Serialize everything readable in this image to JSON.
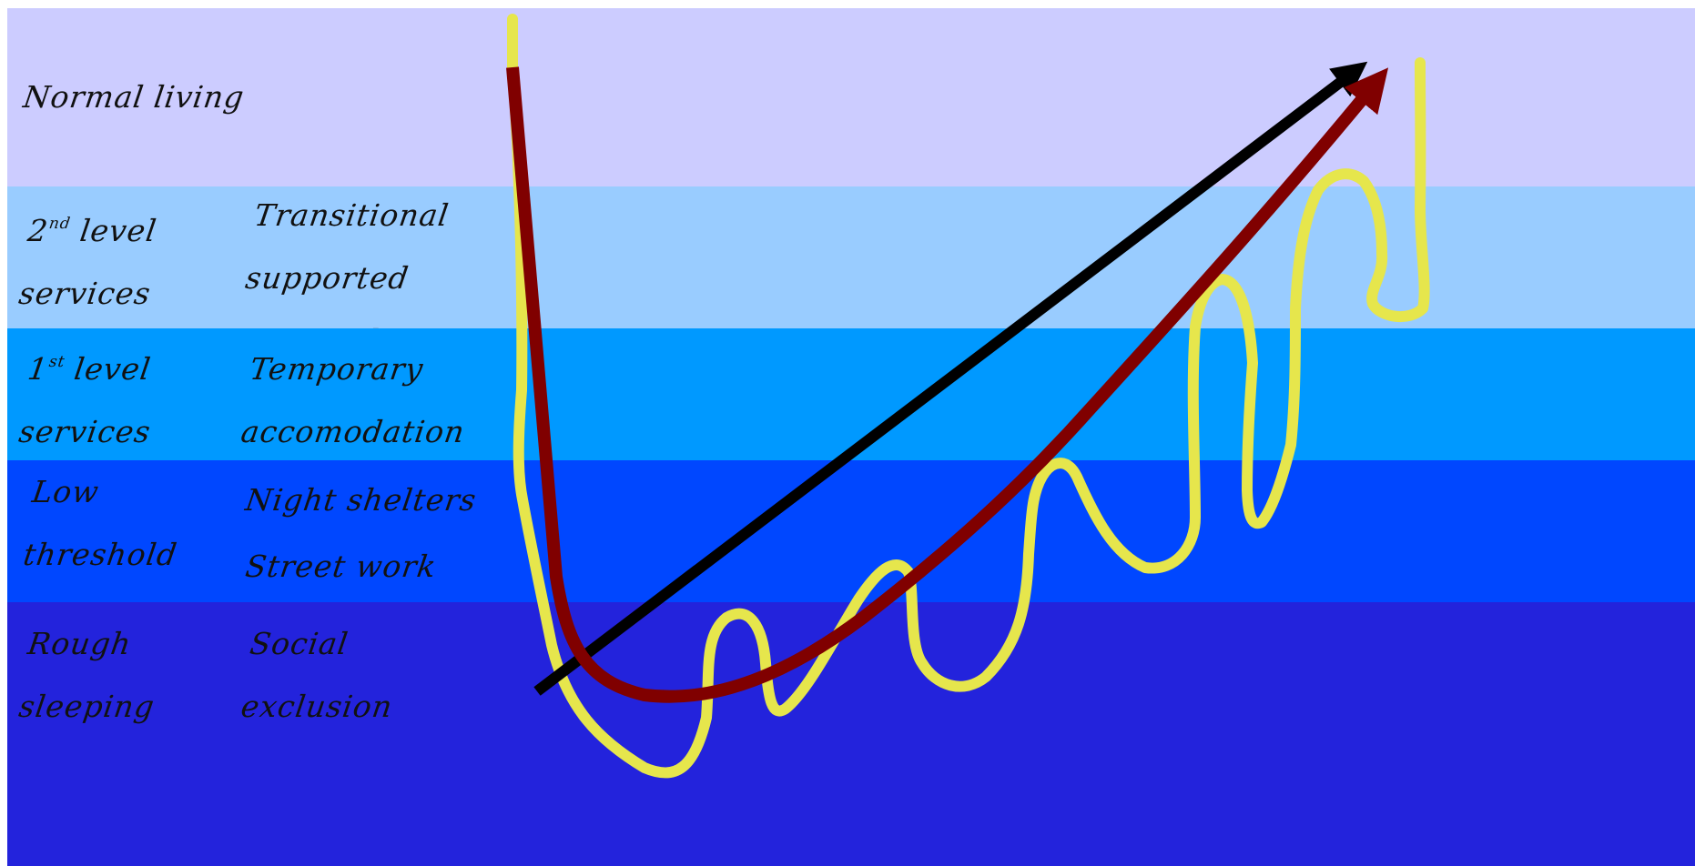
{
  "colors": {
    "normal_living": "#ccccff",
    "second_level": "#99ccff",
    "first_level": "#0099ff",
    "low_threshold": "#0047ff",
    "rough_sleeping": "#2323dc",
    "yellow_line": "#e6e64c",
    "dark_red_line": "#800000",
    "black_arrow": "#000000"
  },
  "bands": [
    {
      "id": "normal-living",
      "level_label": "Normal living",
      "service_labels": []
    },
    {
      "id": "second-level",
      "level_prefix": "2",
      "level_sup": "nd",
      "level_rest": " level\nservices",
      "service_labels": [
        "Transitional\nsupported\naccomodation"
      ]
    },
    {
      "id": "first-level",
      "level_prefix": "1",
      "level_sup": "st",
      "level_rest": " level\nservices",
      "service_labels": [
        "Temporary\naccomodation"
      ]
    },
    {
      "id": "low-threshold",
      "level_label": "Low\nthreshold\nservices",
      "service_labels": [
        "Night shelters",
        "Street work"
      ]
    },
    {
      "id": "rough-sleeping",
      "level_label": "Rough\nsleeping",
      "service_labels": [
        "Social\nexclusion"
      ]
    }
  ]
}
